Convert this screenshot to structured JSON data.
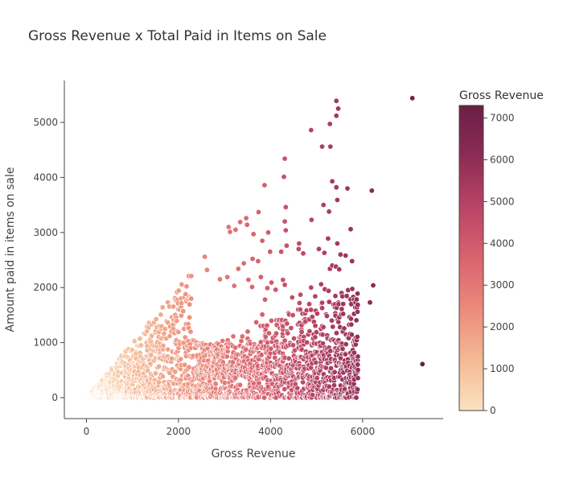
{
  "chart_data": {
    "type": "scatter",
    "title": "Gross Revenue x Total Paid in Items on Sale",
    "xlabel": "Gross Revenue",
    "ylabel": "Amount paid in items on sale",
    "xlim": [
      -480,
      7750
    ],
    "ylim": [
      -380,
      5760
    ],
    "xticks": [
      0,
      2000,
      4000,
      6000
    ],
    "yticks": [
      0,
      1000,
      2000,
      3000,
      4000,
      5000
    ],
    "grid": false,
    "colorbar": {
      "title": "Gross Revenue",
      "range": [
        0,
        7300
      ],
      "ticks": [
        0,
        1000,
        2000,
        3000,
        4000,
        5000,
        6000,
        7000
      ],
      "colors": [
        "#fbe2c0",
        "#f4b995",
        "#ec8a7b",
        "#d9636e",
        "#b94465",
        "#8d2c55",
        "#6b1e45"
      ]
    },
    "outlier_points": [
      [
        7080,
        5440
      ],
      [
        5430,
        5390
      ],
      [
        5470,
        5250
      ],
      [
        5430,
        5120
      ],
      [
        5290,
        4970
      ],
      [
        4880,
        4860
      ],
      [
        5120,
        4560
      ],
      [
        5300,
        4560
      ],
      [
        4310,
        4340
      ],
      [
        4290,
        4010
      ],
      [
        5340,
        3930
      ],
      [
        3870,
        3860
      ],
      [
        5430,
        3820
      ],
      [
        5670,
        3800
      ],
      [
        6200,
        3760
      ],
      [
        5450,
        3590
      ],
      [
        5150,
        3500
      ],
      [
        4330,
        3460
      ],
      [
        5270,
        3380
      ],
      [
        3740,
        3370
      ],
      [
        3470,
        3260
      ],
      [
        4310,
        3200
      ],
      [
        4890,
        3230
      ],
      [
        3340,
        3190
      ],
      [
        3490,
        3140
      ],
      [
        3090,
        3100
      ],
      [
        3240,
        3050
      ],
      [
        4330,
        3040
      ],
      [
        5740,
        3060
      ],
      [
        3120,
        3010
      ],
      [
        3950,
        3000
      ],
      [
        3630,
        2970
      ],
      [
        3820,
        2850
      ],
      [
        4620,
        2800
      ],
      [
        5450,
        2800
      ],
      [
        5250,
        2890
      ],
      [
        4350,
        2760
      ],
      [
        4610,
        2700
      ],
      [
        5050,
        2700
      ],
      [
        3990,
        2650
      ],
      [
        4230,
        2650
      ],
      [
        4710,
        2620
      ],
      [
        5170,
        2630
      ],
      [
        5630,
        2580
      ],
      [
        5520,
        2600
      ],
      [
        2570,
        2560
      ],
      [
        3610,
        2520
      ],
      [
        3730,
        2480
      ],
      [
        5770,
        2480
      ],
      [
        3420,
        2440
      ],
      [
        5340,
        2400
      ],
      [
        5420,
        2380
      ],
      [
        5290,
        2340
      ],
      [
        2620,
        2320
      ],
      [
        3300,
        2340
      ],
      [
        5490,
        2330
      ],
      [
        2220,
        2200
      ],
      [
        3060,
        2190
      ],
      [
        3790,
        2190
      ],
      [
        2900,
        2150
      ],
      [
        3520,
        2140
      ],
      [
        4020,
        2090
      ],
      [
        4270,
        2140
      ],
      [
        6230,
        2040
      ],
      [
        4310,
        2050
      ],
      [
        5100,
        2060
      ],
      [
        3210,
        2030
      ],
      [
        3600,
        2010
      ],
      [
        3930,
        1990
      ],
      [
        4110,
        1960
      ],
      [
        4880,
        2000
      ],
      [
        5180,
        1970
      ],
      [
        5260,
        1940
      ],
      [
        4650,
        1870
      ],
      [
        4970,
        1840
      ],
      [
        4470,
        1820
      ],
      [
        5560,
        1840
      ],
      [
        3880,
        1780
      ],
      [
        6160,
        1730
      ],
      [
        4630,
        1720
      ],
      [
        4840,
        1700
      ],
      [
        4600,
        1600
      ],
      [
        5400,
        1640
      ],
      [
        5210,
        1510
      ],
      [
        4750,
        1530
      ],
      [
        3820,
        1510
      ],
      [
        5330,
        1400
      ],
      [
        4840,
        1420
      ],
      [
        3690,
        1370
      ],
      [
        5570,
        1200
      ],
      [
        5100,
        1150
      ],
      [
        5230,
        1130
      ],
      [
        5390,
        1040
      ],
      [
        5810,
        990
      ],
      [
        5520,
        960
      ],
      [
        5000,
        980
      ],
      [
        7300,
        610
      ],
      [
        5400,
        900
      ],
      [
        4900,
        950
      ],
      [
        5600,
        800
      ],
      [
        5100,
        780
      ],
      [
        5800,
        360
      ],
      [
        5700,
        380
      ],
      [
        5400,
        20
      ]
    ],
    "notes": "Dense cloud: ~2400 additional points with y <= x (roughly triangular region), densest below y=1000; point color encodes Gross Revenue on the colorbar scale."
  }
}
